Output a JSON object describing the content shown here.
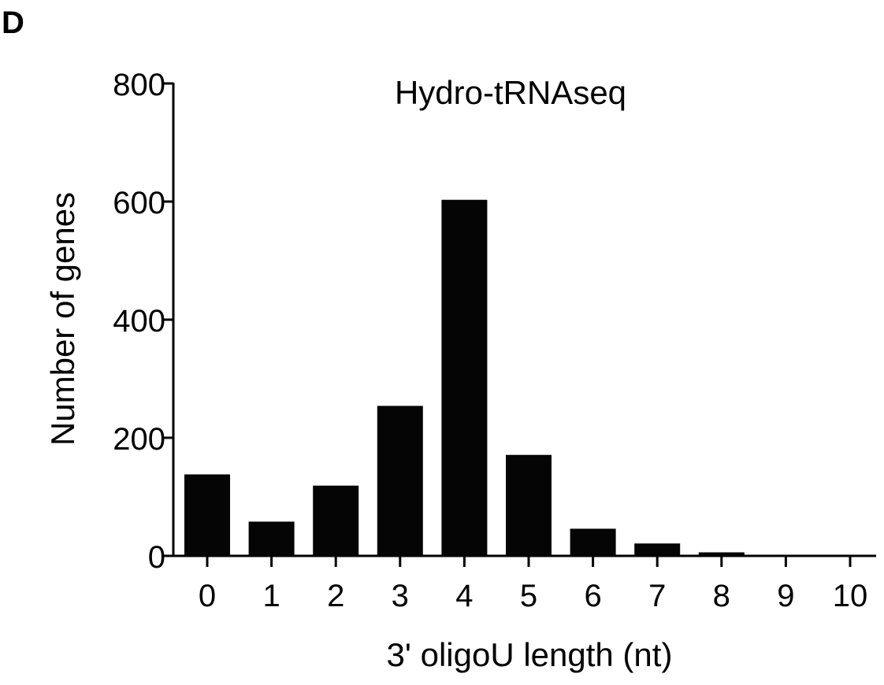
{
  "panel_label": "D",
  "colors": {
    "bar": "#050505",
    "axis": "#000000",
    "background": "#ffffff"
  },
  "chart_data": {
    "type": "bar",
    "title": "Hydro-tRNAseq",
    "xlabel": "3' oligoU length (nt)",
    "ylabel": "Number of genes",
    "categories": [
      "0",
      "1",
      "2",
      "3",
      "4",
      "5",
      "6",
      "7",
      "8",
      "9",
      "10"
    ],
    "values": [
      138,
      58,
      119,
      254,
      603,
      171,
      46,
      21,
      6,
      1,
      2
    ],
    "ylim": [
      0,
      800
    ],
    "yticks": [
      0,
      200,
      400,
      600,
      800
    ],
    "ytick_labels": [
      "0",
      "200",
      "400",
      "600",
      "800"
    ],
    "grid": false,
    "legend": "none"
  }
}
